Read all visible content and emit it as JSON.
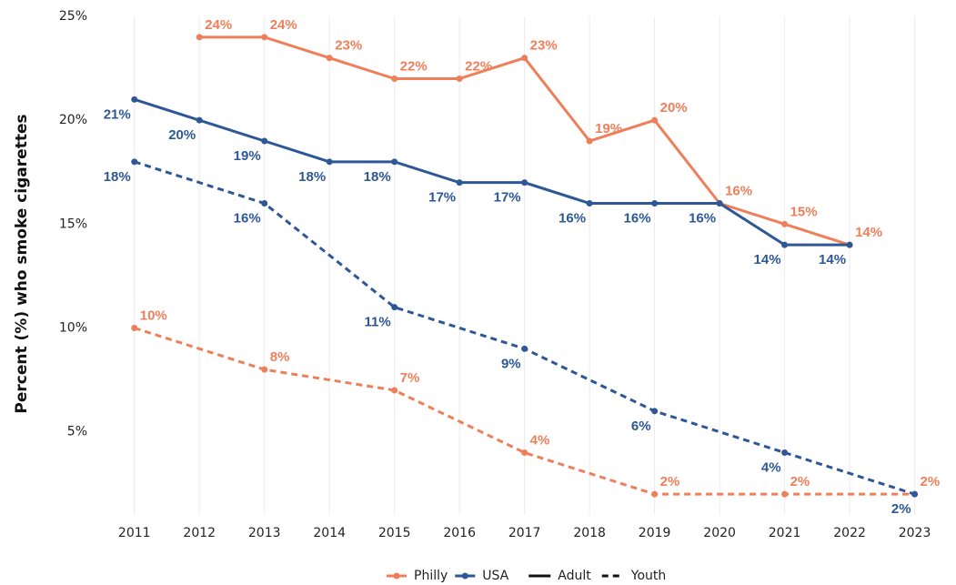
{
  "chart_data": {
    "type": "line",
    "y_label": "Percent (%) who smoke cigarettes",
    "xlim": [
      2010.5,
      2023.3
    ],
    "ylim": [
      1,
      25
    ],
    "xticks": [
      2011,
      2012,
      2013,
      2014,
      2015,
      2016,
      2017,
      2018,
      2019,
      2020,
      2021,
      2022,
      2023
    ],
    "yticks": [
      {
        "value": 5,
        "label": "5%"
      },
      {
        "value": 10,
        "label": "10%"
      },
      {
        "value": 15,
        "label": "15%"
      },
      {
        "value": 20,
        "label": "20%"
      },
      {
        "value": 25,
        "label": "25%"
      }
    ],
    "grid": "x",
    "legend": {
      "colors": [
        {
          "name": "Philly",
          "color": "#ee7f5a"
        },
        {
          "name": "USA",
          "color": "#2d5797"
        }
      ],
      "styles": [
        {
          "name": "Adult",
          "dash": "solid"
        },
        {
          "name": "Youth",
          "dash": "dashed"
        }
      ]
    },
    "series": [
      {
        "location": "Philly",
        "group": "Adult",
        "color": "#ee7f5a",
        "dash": "solid",
        "label_side": "above",
        "x": [
          2012,
          2013,
          2014,
          2015,
          2016,
          2017,
          2018,
          2019,
          2020,
          2021,
          2022
        ],
        "values": [
          24,
          24,
          23,
          22,
          22,
          23,
          19,
          20,
          16,
          15,
          14
        ],
        "value_labels": [
          "24%",
          "24%",
          "23%",
          "22%",
          "22%",
          "23%",
          "19%",
          "20%",
          "16%",
          "15%",
          "14%"
        ]
      },
      {
        "location": "USA",
        "group": "Adult",
        "color": "#2d5797",
        "dash": "solid",
        "label_side": "below",
        "x": [
          2011,
          2012,
          2013,
          2014,
          2015,
          2016,
          2017,
          2018,
          2019,
          2020,
          2021,
          2022
        ],
        "values": [
          21,
          20,
          19,
          18,
          18,
          17,
          17,
          16,
          16,
          16,
          14,
          14
        ],
        "value_labels": [
          "21%",
          "20%",
          "19%",
          "18%",
          "18%",
          "17%",
          "17%",
          "16%",
          "16%",
          "16%",
          "14%",
          "14%"
        ]
      },
      {
        "location": "Philly",
        "group": "Youth",
        "color": "#ee7f5a",
        "dash": "dashed",
        "label_side": "above",
        "x": [
          2011,
          2013,
          2015,
          2017,
          2019,
          2021,
          2023
        ],
        "values": [
          10,
          8,
          7,
          4,
          2,
          2,
          2
        ],
        "value_labels": [
          "10%",
          "8%",
          "7%",
          "4%",
          "2%",
          "2%",
          "2%"
        ]
      },
      {
        "location": "USA",
        "group": "Youth",
        "color": "#2d5797",
        "dash": "dashed",
        "label_side": "below",
        "x": [
          2011,
          2013,
          2015,
          2017,
          2019,
          2021,
          2023
        ],
        "values": [
          18,
          16,
          11,
          9,
          6,
          4,
          2
        ],
        "value_labels": [
          "18%",
          "16%",
          "11%",
          "9%",
          "6%",
          "4%",
          "2%"
        ]
      }
    ]
  }
}
